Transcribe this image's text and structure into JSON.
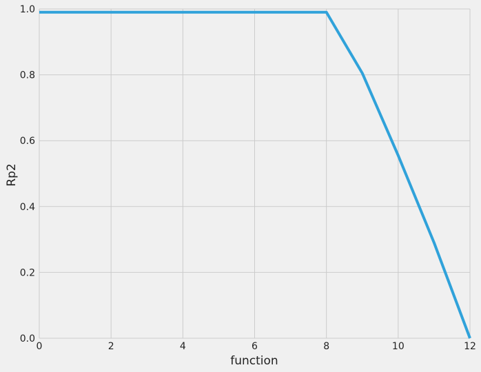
{
  "chart_data": {
    "type": "line",
    "title": "",
    "xlabel": "function",
    "ylabel": "Rp2",
    "xlim": [
      0,
      12
    ],
    "ylim": [
      0,
      1.0
    ],
    "xticks": [
      0,
      2,
      4,
      6,
      8,
      10,
      12
    ],
    "yticks": [
      0.0,
      0.2,
      0.4,
      0.6,
      0.8,
      1.0
    ],
    "xtick_labels": [
      "0",
      "2",
      "4",
      "6",
      "8",
      "10",
      "12"
    ],
    "ytick_labels": [
      "0.0",
      "0.2",
      "0.4",
      "0.6",
      "0.8",
      "1.0"
    ],
    "grid": true,
    "legend": "none",
    "series": [
      {
        "color": "#30a2da",
        "x": [
          0,
          1,
          2,
          3,
          4,
          5,
          6,
          7,
          8,
          9,
          10,
          11,
          12
        ],
        "y": [
          0.99,
          0.99,
          0.99,
          0.99,
          0.99,
          0.99,
          0.99,
          0.99,
          0.99,
          0.805,
          0.555,
          0.29,
          0.0
        ]
      }
    ]
  },
  "style": {
    "background": "#f0f0f0",
    "grid_color": "#cbcbcb",
    "text_color": "#222222"
  }
}
